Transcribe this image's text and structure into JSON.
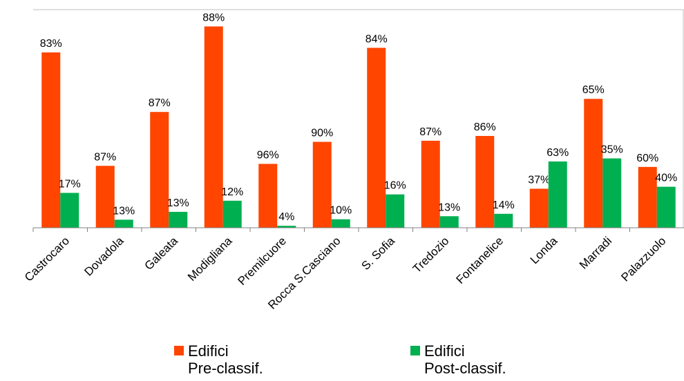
{
  "chart_data": {
    "type": "bar",
    "title": "",
    "xlabel": "",
    "ylabel": "",
    "ylim": [
      0,
      100
    ],
    "grid": false,
    "legend_position": "bottom",
    "categories": [
      "Castrocaro",
      "Dovadola",
      "Galeata",
      "Modigliana",
      "Premilcuore",
      "Rocca S.Casciano",
      "S. Sofia",
      "Tredozio",
      "Fontanelice",
      "Londa",
      "Marradi",
      "Palazzuolo"
    ],
    "series": [
      {
        "name": "Edifici\nPre-classif.",
        "color": "#ff4500",
        "bar_heights": [
          80.4,
          28.4,
          53.1,
          92.3,
          29.3,
          39.4,
          82.5,
          39.9,
          42.1,
          17.9,
          59.1,
          27.9
        ],
        "labels": [
          "83%",
          "87%",
          "87%",
          "88%",
          "96%",
          "90%",
          "84%",
          "87%",
          "86%",
          "37%",
          "65%",
          "60%"
        ]
      },
      {
        "name": "Edifici\nPost-classif.",
        "color": "#00b050",
        "bar_heights": [
          16.0,
          3.7,
          7.3,
          12.4,
          0.9,
          3.9,
          15.3,
          5.3,
          6.4,
          30.4,
          31.8,
          18.8
        ],
        "labels": [
          "17%",
          "13%",
          "13%",
          "12%",
          "4%",
          "10%",
          "16%",
          "13%",
          "14%",
          "63%",
          "35%",
          "40%"
        ]
      }
    ]
  }
}
